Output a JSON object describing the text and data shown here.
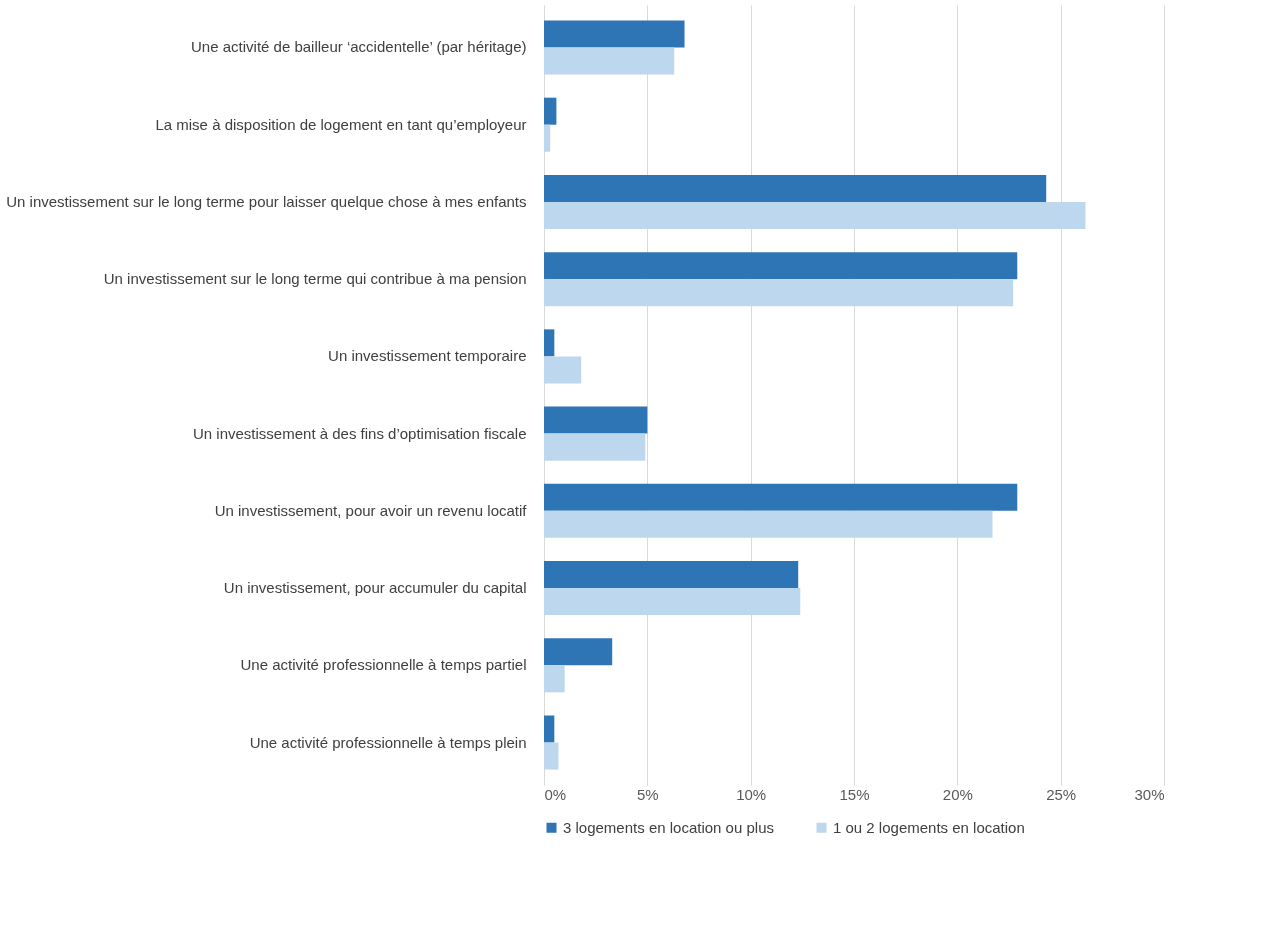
{
  "chart_data": {
    "type": "bar",
    "orientation": "horizontal",
    "categories": [
      "Une activité de bailleur ‘accidentelle’ (par héritage)",
      "La mise à disposition de logement en tant qu’employeur",
      "Un investissement sur le long terme pour laisser quelque chose à mes enfants",
      "Un investissement sur le long terme qui contribue à ma pension",
      "Un investissement temporaire",
      "Un investissement à des fins d’optimisation fiscale",
      "Un investissement, pour avoir un revenu locatif",
      "Un investissement, pour accumuler du capital",
      "Une activité professionnelle à temps partiel",
      "Une activité professionnelle à temps plein"
    ],
    "series": [
      {
        "name": "3 logements en location ou plus",
        "color": "#2e75b6",
        "values": [
          6.8,
          0.6,
          24.3,
          22.9,
          0.5,
          5.0,
          22.9,
          12.3,
          3.3,
          0.5
        ]
      },
      {
        "name": "1 ou 2 logements en location",
        "color": "#bdd7ee",
        "values": [
          6.3,
          0.3,
          26.2,
          22.7,
          1.8,
          4.9,
          21.7,
          12.4,
          1.0,
          0.7
        ]
      }
    ],
    "xlim": [
      0,
      30
    ],
    "xticks": [
      {
        "value": 0,
        "label": "0%"
      },
      {
        "value": 5,
        "label": "5%"
      },
      {
        "value": 10,
        "label": "10%"
      },
      {
        "value": 15,
        "label": "15%"
      },
      {
        "value": 20,
        "label": "20%"
      },
      {
        "value": 25,
        "label": "25%"
      },
      {
        "value": 30,
        "label": "30%"
      }
    ],
    "grid": "x",
    "legend": "bottom"
  }
}
